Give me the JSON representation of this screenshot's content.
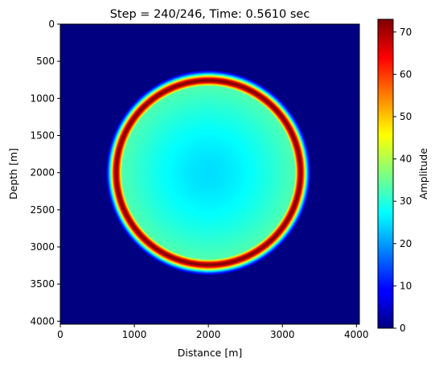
{
  "chart_data": {
    "type": "heatmap",
    "title": "Step = 240/246, Time: 0.5610 sec",
    "xlabel": "Distance [m]",
    "ylabel": "Depth [m]",
    "xlim": [
      0,
      4040
    ],
    "ylim": [
      4040,
      0
    ],
    "xticks": [
      0,
      1000,
      2000,
      3000,
      4000
    ],
    "yticks": [
      0,
      500,
      1000,
      1500,
      2000,
      2500,
      3000,
      3500,
      4000
    ],
    "colormap": "jet",
    "colorbar": {
      "label": "Amplitude",
      "range": [
        0,
        73
      ],
      "ticks": [
        0,
        10,
        20,
        30,
        40,
        50,
        60,
        70
      ]
    },
    "wavefield": {
      "center": [
        2000,
        2000
      ],
      "ring_radius": 1250,
      "outer_edge_radius": 1380,
      "ring_peak_amplitude": 73,
      "interior_amplitude_at_center": 25,
      "interior_amplitude_near_ring": 34,
      "background_amplitude": 0
    }
  }
}
